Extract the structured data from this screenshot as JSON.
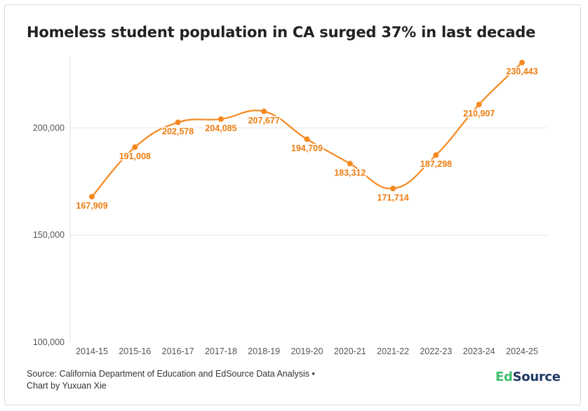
{
  "title": "Homeless student population in CA surged 37% in last decade",
  "source": {
    "line1": "Source: California Department of Education and EdSource Data Analysis •",
    "line2": "Chart by Yuxuan Xie"
  },
  "logo": {
    "part1": "Ed",
    "part2": "Source",
    "text": "EdSource"
  },
  "colors": {
    "line": "#f5891f",
    "label": "#ee7d11",
    "grid": "#e8e8e8",
    "axis_text": "#555555"
  },
  "chart_data": {
    "type": "line",
    "title": "Homeless student population in CA surged 37% in last decade",
    "xlabel": "",
    "ylabel": "",
    "categories": [
      "2014-15",
      "2015-16",
      "2016-17",
      "2017-18",
      "2018-19",
      "2019-20",
      "2020-21",
      "2021-22",
      "2022-23",
      "2023-24",
      "2024-25"
    ],
    "series": [
      {
        "values": [
          167909,
          191008,
          202578,
          204085,
          207677,
          194709,
          183312,
          171714,
          187298,
          210907,
          230443
        ],
        "labels": [
          "167,909",
          "191,008",
          "202,578",
          "204,085",
          "207,677",
          "194,709",
          "183,312",
          "171,714",
          "187,298",
          "210,907",
          "230,443"
        ]
      }
    ],
    "ylim": [
      100000,
      240000
    ],
    "yticks": [
      100000,
      150000,
      200000
    ],
    "ytick_labels": [
      "100,000",
      "150,000",
      "200,000"
    ],
    "grid": true,
    "legend": "none"
  }
}
